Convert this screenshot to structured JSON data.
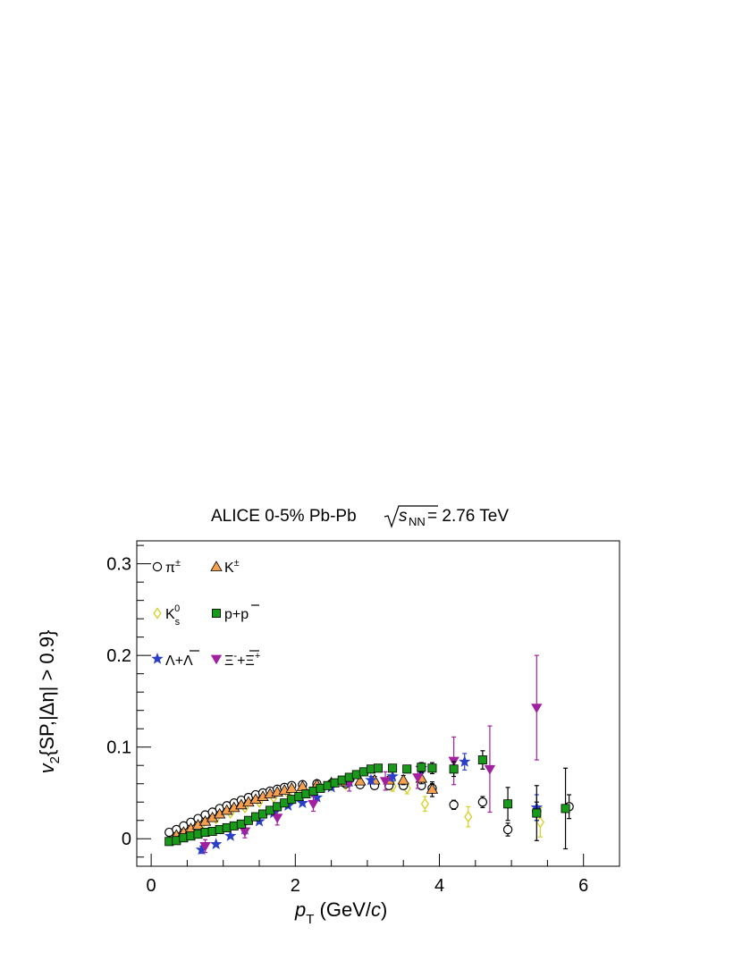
{
  "chart_data": {
    "type": "scatter",
    "title": {
      "prefix": "ALICE 0-5% Pb-Pb ",
      "sqrt_symbol": "s",
      "sqrt_subscript": "NN",
      "suffix": " = 2.76 TeV"
    },
    "xlabel": {
      "main": "p",
      "sub": "T",
      "rest": " (GeV/",
      "italic": "c",
      "close": ")"
    },
    "ylabel": {
      "main": "v",
      "sub": "2",
      "rest": "{SP,|Δη| > 0.9}"
    },
    "xlim": [
      -0.2,
      6.5
    ],
    "ylim": [
      -0.03,
      0.325
    ],
    "xticks": [
      0,
      2,
      4,
      6
    ],
    "xtick_labels": [
      "0",
      "2",
      "4",
      "6"
    ],
    "yticks": [
      0,
      0.1,
      0.2,
      0.3
    ],
    "ytick_labels": [
      "0",
      "0.1",
      "0.2",
      "0.3"
    ],
    "grid": false,
    "legend_position": "top-left",
    "series": [
      {
        "name": "π±",
        "label_main": "π",
        "label_sup": "±",
        "marker": "open-circle",
        "color": "#000000",
        "fill": "#ffffff",
        "points": [
          [
            0.25,
            0.007,
            0.002
          ],
          [
            0.35,
            0.01,
            0.002
          ],
          [
            0.45,
            0.014,
            0.002
          ],
          [
            0.55,
            0.018,
            0.002
          ],
          [
            0.65,
            0.022,
            0.002
          ],
          [
            0.75,
            0.026,
            0.002
          ],
          [
            0.85,
            0.029,
            0.002
          ],
          [
            0.95,
            0.033,
            0.002
          ],
          [
            1.05,
            0.036,
            0.002
          ],
          [
            1.15,
            0.039,
            0.002
          ],
          [
            1.25,
            0.042,
            0.002
          ],
          [
            1.35,
            0.045,
            0.002
          ],
          [
            1.45,
            0.048,
            0.002
          ],
          [
            1.55,
            0.05,
            0.002
          ],
          [
            1.65,
            0.052,
            0.002
          ],
          [
            1.75,
            0.054,
            0.002
          ],
          [
            1.85,
            0.056,
            0.002
          ],
          [
            1.95,
            0.058,
            0.002
          ],
          [
            2.1,
            0.059,
            0.002
          ],
          [
            2.3,
            0.06,
            0.002
          ],
          [
            2.5,
            0.06,
            0.003
          ],
          [
            2.7,
            0.06,
            0.003
          ],
          [
            2.9,
            0.059,
            0.003
          ],
          [
            3.1,
            0.058,
            0.003
          ],
          [
            3.3,
            0.058,
            0.003
          ],
          [
            3.5,
            0.058,
            0.004
          ],
          [
            3.75,
            0.058,
            0.004
          ],
          [
            3.9,
            0.055,
            0.005
          ],
          [
            4.2,
            0.037,
            0.005
          ],
          [
            4.6,
            0.04,
            0.006
          ],
          [
            4.95,
            0.01,
            0.007
          ],
          [
            5.35,
            0.03,
            0.01
          ],
          [
            5.8,
            0.035,
            0.013
          ]
        ]
      },
      {
        "name": "K±",
        "label_main": "K",
        "label_sup": "±",
        "marker": "filled-triangle",
        "color": "#000000",
        "fill": "#f5a050",
        "points": [
          [
            0.35,
            0.004,
            0.002
          ],
          [
            0.45,
            0.007,
            0.002
          ],
          [
            0.55,
            0.011,
            0.002
          ],
          [
            0.65,
            0.015,
            0.002
          ],
          [
            0.75,
            0.019,
            0.002
          ],
          [
            0.85,
            0.023,
            0.002
          ],
          [
            0.95,
            0.027,
            0.002
          ],
          [
            1.05,
            0.031,
            0.002
          ],
          [
            1.15,
            0.034,
            0.002
          ],
          [
            1.25,
            0.037,
            0.002
          ],
          [
            1.35,
            0.04,
            0.002
          ],
          [
            1.45,
            0.043,
            0.002
          ],
          [
            1.55,
            0.046,
            0.002
          ],
          [
            1.65,
            0.049,
            0.002
          ],
          [
            1.75,
            0.051,
            0.002
          ],
          [
            1.85,
            0.053,
            0.002
          ],
          [
            1.95,
            0.055,
            0.002
          ],
          [
            2.1,
            0.057,
            0.002
          ],
          [
            2.3,
            0.059,
            0.003
          ],
          [
            2.5,
            0.061,
            0.003
          ],
          [
            2.7,
            0.062,
            0.003
          ],
          [
            2.9,
            0.063,
            0.003
          ],
          [
            3.1,
            0.064,
            0.004
          ],
          [
            3.3,
            0.064,
            0.004
          ],
          [
            3.5,
            0.064,
            0.005
          ],
          [
            3.75,
            0.066,
            0.006
          ],
          [
            3.9,
            0.054,
            0.008
          ]
        ]
      },
      {
        "name": "K_s^0",
        "label_main": "K",
        "label_sub": "s",
        "label_sup": "0",
        "marker": "open-diamond",
        "color": "#d8d020",
        "fill": "#ffffff",
        "points": [
          [
            0.3,
            0.003,
            0.002
          ],
          [
            0.5,
            0.008,
            0.002
          ],
          [
            0.7,
            0.015,
            0.002
          ],
          [
            0.9,
            0.022,
            0.002
          ],
          [
            1.1,
            0.028,
            0.002
          ],
          [
            1.3,
            0.034,
            0.002
          ],
          [
            1.5,
            0.04,
            0.002
          ],
          [
            1.7,
            0.045,
            0.002
          ],
          [
            1.9,
            0.049,
            0.002
          ],
          [
            2.1,
            0.053,
            0.002
          ],
          [
            2.3,
            0.056,
            0.002
          ],
          [
            2.5,
            0.058,
            0.003
          ],
          [
            2.7,
            0.059,
            0.003
          ],
          [
            2.9,
            0.06,
            0.003
          ],
          [
            3.1,
            0.06,
            0.004
          ],
          [
            3.35,
            0.057,
            0.005
          ],
          [
            3.55,
            0.055,
            0.006
          ],
          [
            3.8,
            0.038,
            0.008
          ],
          [
            4.4,
            0.024,
            0.011
          ],
          [
            5.4,
            0.018,
            0.016
          ]
        ]
      },
      {
        "name": "p+p̄",
        "label_main": "p+p",
        "label_bar": "p",
        "marker": "filled-square",
        "color": "#000000",
        "fill": "#1a9a1a",
        "points": [
          [
            0.25,
            -0.003,
            0.002
          ],
          [
            0.35,
            -0.002,
            0.002
          ],
          [
            0.45,
            0.001,
            0.002
          ],
          [
            0.55,
            0.003,
            0.002
          ],
          [
            0.65,
            0.005,
            0.002
          ],
          [
            0.75,
            0.007,
            0.002
          ],
          [
            0.85,
            0.008,
            0.002
          ],
          [
            0.95,
            0.01,
            0.002
          ],
          [
            1.05,
            0.012,
            0.002
          ],
          [
            1.15,
            0.014,
            0.002
          ],
          [
            1.25,
            0.016,
            0.002
          ],
          [
            1.35,
            0.02,
            0.002
          ],
          [
            1.45,
            0.024,
            0.002
          ],
          [
            1.55,
            0.027,
            0.002
          ],
          [
            1.65,
            0.031,
            0.002
          ],
          [
            1.75,
            0.035,
            0.002
          ],
          [
            1.85,
            0.039,
            0.002
          ],
          [
            1.95,
            0.043,
            0.002
          ],
          [
            2.05,
            0.046,
            0.002
          ],
          [
            2.15,
            0.049,
            0.002
          ],
          [
            2.25,
            0.052,
            0.002
          ],
          [
            2.35,
            0.055,
            0.002
          ],
          [
            2.45,
            0.058,
            0.002
          ],
          [
            2.55,
            0.061,
            0.002
          ],
          [
            2.65,
            0.064,
            0.002
          ],
          [
            2.75,
            0.067,
            0.002
          ],
          [
            2.85,
            0.07,
            0.003
          ],
          [
            2.95,
            0.073,
            0.003
          ],
          [
            3.05,
            0.076,
            0.003
          ],
          [
            3.15,
            0.077,
            0.003
          ],
          [
            3.35,
            0.077,
            0.003
          ],
          [
            3.55,
            0.076,
            0.004
          ],
          [
            3.75,
            0.078,
            0.005
          ],
          [
            3.9,
            0.077,
            0.006
          ],
          [
            4.2,
            0.076,
            0.008
          ],
          [
            4.6,
            0.086,
            0.01
          ],
          [
            4.95,
            0.038,
            0.018
          ],
          [
            5.35,
            0.028,
            0.03
          ],
          [
            5.75,
            0.033,
            0.044
          ]
        ]
      },
      {
        "name": "Λ+Λ̄",
        "label_main": "Λ+Λ",
        "label_bar": "Λ",
        "marker": "filled-star",
        "color": "#2a3fc8",
        "fill": "#2a3fc8",
        "points": [
          [
            0.7,
            -0.012,
            0.004
          ],
          [
            0.9,
            -0.006,
            0.003
          ],
          [
            1.1,
            0.003,
            0.003
          ],
          [
            1.3,
            0.01,
            0.003
          ],
          [
            1.5,
            0.019,
            0.003
          ],
          [
            1.7,
            0.028,
            0.003
          ],
          [
            1.9,
            0.036,
            0.003
          ],
          [
            2.1,
            0.039,
            0.003
          ],
          [
            2.3,
            0.045,
            0.003
          ],
          [
            2.5,
            0.056,
            0.003
          ],
          [
            2.75,
            0.062,
            0.004
          ],
          [
            3.05,
            0.064,
            0.004
          ],
          [
            3.35,
            0.068,
            0.005
          ],
          [
            3.75,
            0.077,
            0.006
          ],
          [
            4.35,
            0.084,
            0.009
          ],
          [
            5.35,
            0.034,
            0.014
          ]
        ]
      },
      {
        "name": "Ξ⁻+Ξ̄⁺",
        "label_main": "Ξ",
        "label_sup": "-",
        "label_plus": "+",
        "label_bar": "Ξ",
        "label_bar_sup": "+",
        "marker": "filled-triangle-down",
        "color": "#a020a0",
        "fill": "#a020a0",
        "points": [
          [
            0.75,
            -0.008,
            0.007
          ],
          [
            1.3,
            0.008,
            0.007
          ],
          [
            1.75,
            0.023,
            0.008
          ],
          [
            2.25,
            0.038,
            0.008
          ],
          [
            2.75,
            0.061,
            0.009
          ],
          [
            3.25,
            0.063,
            0.01
          ],
          [
            3.7,
            0.067,
            0.012
          ],
          [
            4.2,
            0.085,
            0.026
          ],
          [
            4.7,
            0.076,
            0.047
          ],
          [
            5.35,
            0.143,
            0.057
          ]
        ]
      }
    ]
  }
}
